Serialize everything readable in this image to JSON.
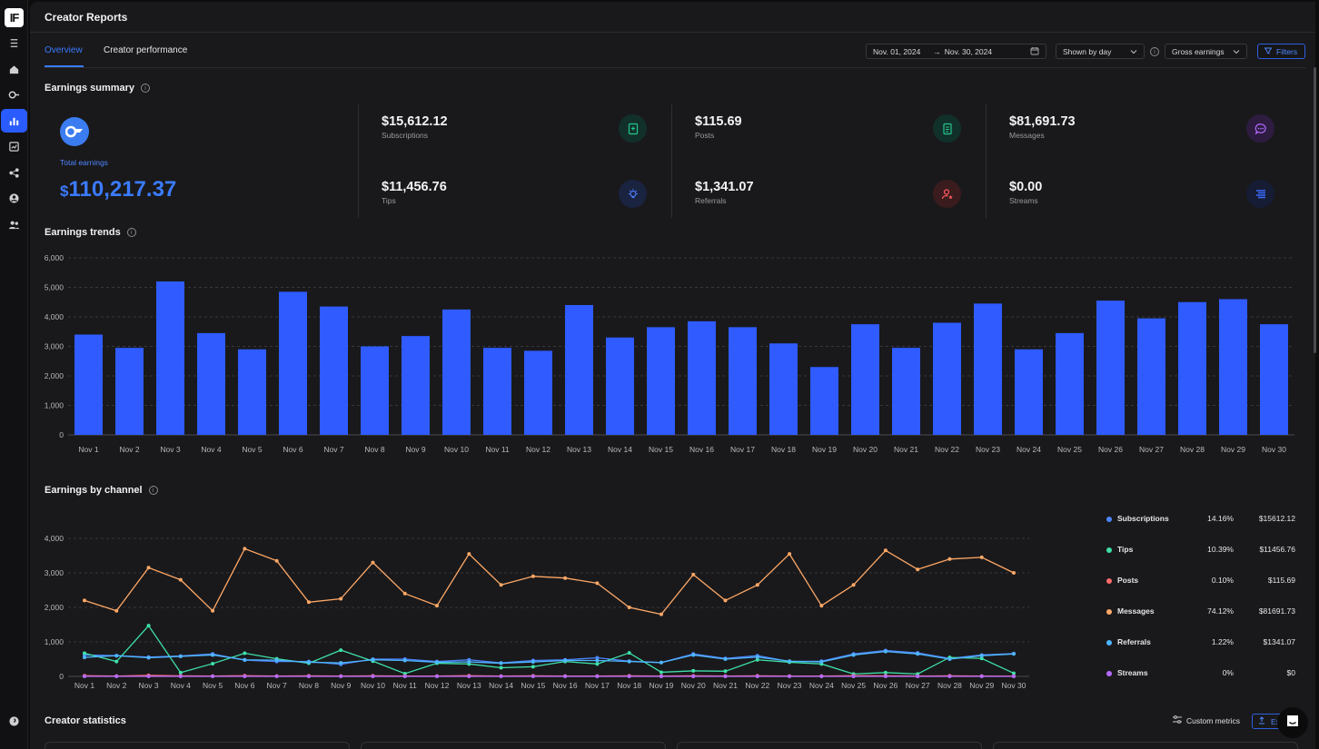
{
  "sidebar": {
    "logo_text": "IF",
    "items": [
      {
        "icon": "menu-icon"
      },
      {
        "icon": "home-icon"
      },
      {
        "icon": "link-icon"
      },
      {
        "icon": "bar-chart-icon",
        "active": true
      },
      {
        "icon": "line-chart-icon"
      },
      {
        "icon": "share-icon"
      },
      {
        "icon": "user-circle-icon"
      },
      {
        "icon": "users-icon"
      }
    ],
    "bottom_icon": "support-icon"
  },
  "header": {
    "title": "Creator Reports"
  },
  "tabs": [
    {
      "label": "Overview",
      "active": true
    },
    {
      "label": "Creator performance",
      "active": false
    }
  ],
  "controls": {
    "date_start": "Nov. 01, 2024",
    "date_arrow": "→",
    "date_end": "Nov. 30, 2024",
    "granularity": "Shown by day",
    "metric": "Gross earnings",
    "filters_label": "Filters"
  },
  "summary": {
    "title": "Earnings summary",
    "total_label": "Total earnings",
    "total_currency": "$",
    "total_value": "110,217.37",
    "metrics": [
      {
        "value": "$15,612.12",
        "label": "Subscriptions",
        "icon": "bookmark-plus-icon",
        "color": "#23c58a"
      },
      {
        "value": "$11,456.76",
        "label": "Tips",
        "icon": "lightbulb-icon",
        "color": "#4d7dff"
      },
      {
        "value": "$115.69",
        "label": "Posts",
        "icon": "document-icon",
        "color": "#23c58a"
      },
      {
        "value": "$1,341.07",
        "label": "Referrals",
        "icon": "user-star-icon",
        "color": "#ff5a5f"
      },
      {
        "value": "$81,691.73",
        "label": "Messages",
        "icon": "message-icon",
        "color": "#b36bff"
      },
      {
        "value": "$0.00",
        "label": "Streams",
        "icon": "stream-icon",
        "color": "#3a6bff"
      }
    ]
  },
  "trends": {
    "title": "Earnings trends"
  },
  "channel": {
    "title": "Earnings by channel",
    "legend": [
      {
        "name": "Subscriptions",
        "pct": "14.16%",
        "amount": "$15612.12",
        "color": "#4d86ff"
      },
      {
        "name": "Tips",
        "pct": "10.39%",
        "amount": "$11456.76",
        "color": "#3fe0a8"
      },
      {
        "name": "Posts",
        "pct": "0.10%",
        "amount": "$115.69",
        "color": "#ff6b6b"
      },
      {
        "name": "Messages",
        "pct": "74.12%",
        "amount": "$81691.73",
        "color": "#ffa866"
      },
      {
        "name": "Referrals",
        "pct": "1.22%",
        "amount": "$1341.07",
        "color": "#4fb6ff"
      },
      {
        "name": "Streams",
        "pct": "0%",
        "amount": "$0",
        "color": "#b46bff"
      }
    ]
  },
  "statistics": {
    "title": "Creator statistics",
    "custom_metrics_label": "Custom metrics",
    "export_label": "Export"
  },
  "chart_data": [
    {
      "type": "bar",
      "title": "Earnings trends",
      "categories": [
        "Nov 1",
        "Nov 2",
        "Nov 3",
        "Nov 4",
        "Nov 5",
        "Nov 6",
        "Nov 7",
        "Nov 8",
        "Nov 9",
        "Nov 10",
        "Nov 11",
        "Nov 12",
        "Nov 13",
        "Nov 14",
        "Nov 15",
        "Nov 16",
        "Nov 17",
        "Nov 18",
        "Nov 19",
        "Nov 20",
        "Nov 21",
        "Nov 22",
        "Nov 23",
        "Nov 24",
        "Nov 25",
        "Nov 26",
        "Nov 27",
        "Nov 28",
        "Nov 29",
        "Nov 30"
      ],
      "values": [
        3400,
        2950,
        5200,
        3450,
        2900,
        4850,
        4350,
        3000,
        3350,
        4250,
        2950,
        2850,
        4400,
        3300,
        3650,
        3850,
        3650,
        3100,
        2300,
        3750,
        2950,
        3800,
        4450,
        2900,
        3450,
        4550,
        3950,
        4500,
        4600,
        3750
      ],
      "ylim": [
        0,
        6000
      ],
      "yticks": [
        "0",
        "1,000",
        "2,000",
        "3,000",
        "4,000",
        "5,000",
        "6,000"
      ],
      "grid": true,
      "color": "#2f5bff"
    },
    {
      "type": "line",
      "title": "Earnings by channel",
      "x": [
        "Nov 1",
        "Nov 2",
        "Nov 3",
        "Nov 4",
        "Nov 5",
        "Nov 6",
        "Nov 7",
        "Nov 8",
        "Nov 9",
        "Nov 10",
        "Nov 11",
        "Nov 12",
        "Nov 13",
        "Nov 14",
        "Nov 15",
        "Nov 16",
        "Nov 17",
        "Nov 18",
        "Nov 19",
        "Nov 20",
        "Nov 21",
        "Nov 22",
        "Nov 23",
        "Nov 24",
        "Nov 25",
        "Nov 26",
        "Nov 27",
        "Nov 28",
        "Nov 29",
        "Nov 30"
      ],
      "ylim": [
        0,
        4000
      ],
      "yticks": [
        "0",
        "1,000",
        "2,000",
        "3,000",
        "4,000"
      ],
      "grid": true,
      "legend": "right",
      "series": [
        {
          "name": "Messages",
          "color": "#ffa866",
          "values": [
            2200,
            1900,
            3150,
            2800,
            1900,
            3700,
            3350,
            2150,
            2250,
            3300,
            2400,
            2050,
            3550,
            2650,
            2900,
            2850,
            2700,
            2000,
            1800,
            2950,
            2200,
            2650,
            3550,
            2050,
            2650,
            3650,
            3100,
            3400,
            3450,
            3000
          ]
        },
        {
          "name": "Subscriptions",
          "color": "#4d86ff",
          "values": [
            620,
            600,
            560,
            590,
            650,
            470,
            430,
            430,
            350,
            500,
            500,
            430,
            480,
            390,
            460,
            480,
            540,
            440,
            400,
            650,
            520,
            600,
            430,
            440,
            650,
            750,
            680,
            520,
            620,
            660
          ]
        },
        {
          "name": "Tips",
          "color": "#3fe0a8",
          "values": [
            670,
            430,
            1470,
            110,
            370,
            670,
            510,
            380,
            760,
            440,
            80,
            380,
            360,
            250,
            280,
            430,
            360,
            680,
            120,
            160,
            150,
            480,
            410,
            360,
            70,
            110,
            70,
            550,
            520,
            90
          ]
        },
        {
          "name": "Referrals",
          "color": "#4fb6ff",
          "values": [
            550,
            600,
            540,
            580,
            620,
            480,
            470,
            410,
            390,
            480,
            460,
            410,
            420,
            380,
            420,
            460,
            460,
            430,
            400,
            620,
            500,
            560,
            440,
            420,
            620,
            720,
            650,
            500,
            600,
            650
          ]
        },
        {
          "name": "Posts",
          "color": "#ff6b6b",
          "values": [
            20,
            10,
            30,
            15,
            10,
            20,
            10,
            15,
            10,
            15,
            10,
            10,
            20,
            10,
            15,
            10,
            10,
            15,
            10,
            15,
            10,
            15,
            10,
            10,
            20,
            15,
            10,
            15,
            10,
            5
          ]
        },
        {
          "name": "Streams",
          "color": "#b46bff",
          "values": [
            0,
            0,
            0,
            0,
            0,
            0,
            0,
            0,
            0,
            0,
            0,
            0,
            0,
            0,
            0,
            0,
            0,
            0,
            0,
            0,
            0,
            0,
            0,
            0,
            0,
            0,
            0,
            0,
            0,
            0
          ]
        }
      ]
    }
  ]
}
